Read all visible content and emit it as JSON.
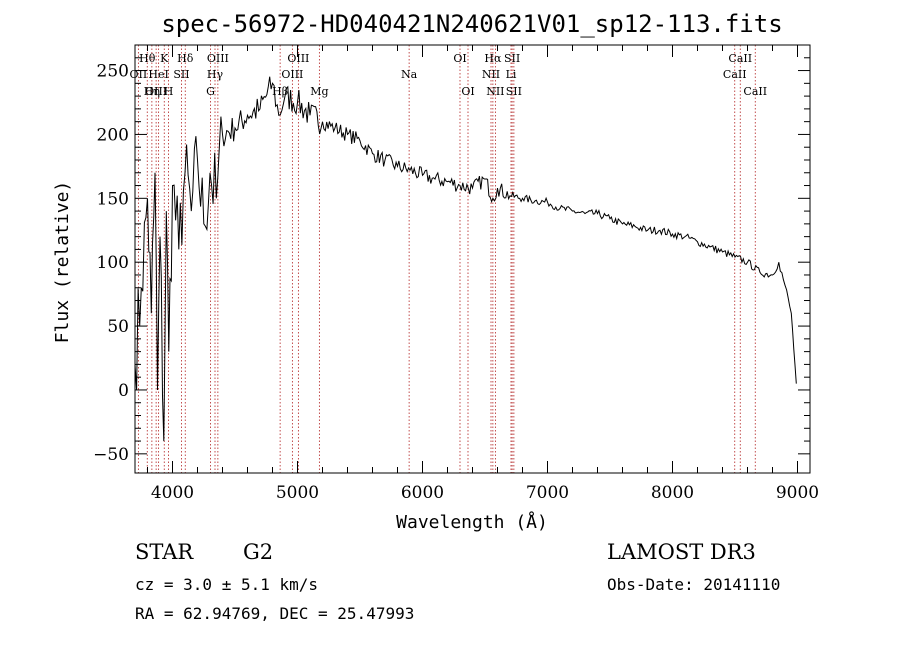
{
  "chart_data": {
    "type": "line",
    "title": "spec-56972-HD040421N240621V01_sp12-113.fits",
    "xlabel": "Wavelength (Å)",
    "ylabel": "Flux (relative)",
    "xlim": [
      3700,
      9100
    ],
    "ylim": [
      -65,
      270
    ],
    "xticks": [
      4000,
      5000,
      6000,
      7000,
      8000,
      9000
    ],
    "xtick_labels": [
      "4000",
      "5000",
      "6000",
      "7000",
      "8000",
      "9000"
    ],
    "yticks": [
      -50,
      0,
      50,
      100,
      150,
      200,
      250
    ],
    "ytick_labels": [
      "−50",
      "0",
      "50",
      "100",
      "150",
      "200",
      "250"
    ],
    "series": [
      {
        "name": "flux",
        "x": [
          3700,
          3750,
          3800,
          3830,
          3860,
          3880,
          3900,
          3930,
          3950,
          3970,
          4000,
          4050,
          4100,
          4150,
          4200,
          4250,
          4300,
          4350,
          4400,
          4500,
          4600,
          4700,
          4800,
          4850,
          4900,
          5000,
          5100,
          5200,
          5300,
          5400,
          5500,
          5600,
          5700,
          5800,
          5900,
          6000,
          6100,
          6200,
          6300,
          6400,
          6500,
          6563,
          6600,
          6700,
          6800,
          6900,
          7000,
          7100,
          7200,
          7300,
          7400,
          7500,
          7600,
          7700,
          7800,
          7900,
          8000,
          8100,
          8200,
          8300,
          8400,
          8500,
          8600,
          8700,
          8800,
          8850,
          8900,
          8950,
          8990
        ],
        "y": [
          20,
          80,
          150,
          60,
          170,
          0,
          120,
          -40,
          140,
          30,
          160,
          110,
          170,
          140,
          180,
          130,
          170,
          150,
          200,
          205,
          215,
          220,
          240,
          215,
          230,
          225,
          215,
          210,
          205,
          200,
          195,
          185,
          180,
          175,
          172,
          168,
          165,
          163,
          160,
          158,
          165,
          150,
          158,
          152,
          150,
          148,
          147,
          142,
          140,
          138,
          138,
          134,
          130,
          128,
          125,
          125,
          122,
          120,
          116,
          112,
          108,
          104,
          100,
          92,
          90,
          100,
          82,
          60,
          5
        ]
      }
    ],
    "spectral_lines": [
      {
        "name": "Hθ",
        "wavelength": 3798,
        "row": 1
      },
      {
        "name": "OII",
        "wavelength": 3727,
        "row": 2
      },
      {
        "name": "OIII",
        "wavelength": 3869,
        "row": 3
      },
      {
        "name": "K",
        "wavelength": 3934,
        "row": 1
      },
      {
        "name": "HeI",
        "wavelength": 3889,
        "row": 2
      },
      {
        "name": "Hη",
        "wavelength": 3835,
        "row": 3
      },
      {
        "name": "Hδ",
        "wavelength": 4102,
        "row": 1
      },
      {
        "name": "SII",
        "wavelength": 4072,
        "row": 2
      },
      {
        "name": "H",
        "wavelength": 3968,
        "row": 3
      },
      {
        "name": "OIII",
        "wavelength": 4363,
        "row": 1
      },
      {
        "name": "Hγ",
        "wavelength": 4340,
        "row": 2
      },
      {
        "name": "G",
        "wavelength": 4304,
        "row": 3
      },
      {
        "name": "OIII",
        "wavelength": 5007,
        "row": 1
      },
      {
        "name": "OIII",
        "wavelength": 4959,
        "row": 2
      },
      {
        "name": "Hβ",
        "wavelength": 4861,
        "row": 3
      },
      {
        "name": "Mg",
        "wavelength": 5175,
        "row": 3
      },
      {
        "name": "Na",
        "wavelength": 5893,
        "row": 2
      },
      {
        "name": "OI",
        "wavelength": 6300,
        "row": 1
      },
      {
        "name": "OI",
        "wavelength": 6364,
        "row": 3
      },
      {
        "name": "Hα",
        "wavelength": 6563,
        "row": 1
      },
      {
        "name": "NII",
        "wavelength": 6548,
        "row": 2
      },
      {
        "name": "NII",
        "wavelength": 6583,
        "row": 3
      },
      {
        "name": "SII",
        "wavelength": 6717,
        "row": 1
      },
      {
        "name": "Li",
        "wavelength": 6708,
        "row": 2
      },
      {
        "name": "SII",
        "wavelength": 6731,
        "row": 3
      },
      {
        "name": "CaII",
        "wavelength": 8542,
        "row": 1
      },
      {
        "name": "CaII",
        "wavelength": 8498,
        "row": 2
      },
      {
        "name": "CaII",
        "wavelength": 8662,
        "row": 3
      }
    ],
    "line_color": "#000000",
    "marker_color": "#b22222"
  },
  "info": {
    "object_class": "STAR",
    "subclass": "G2",
    "survey": "LAMOST DR3",
    "cz": "cz = 3.0 ± 5.1 km/s",
    "obs_date": "Obs-Date: 20141110",
    "coords": "RA =  62.94769, DEC =  25.47993"
  }
}
